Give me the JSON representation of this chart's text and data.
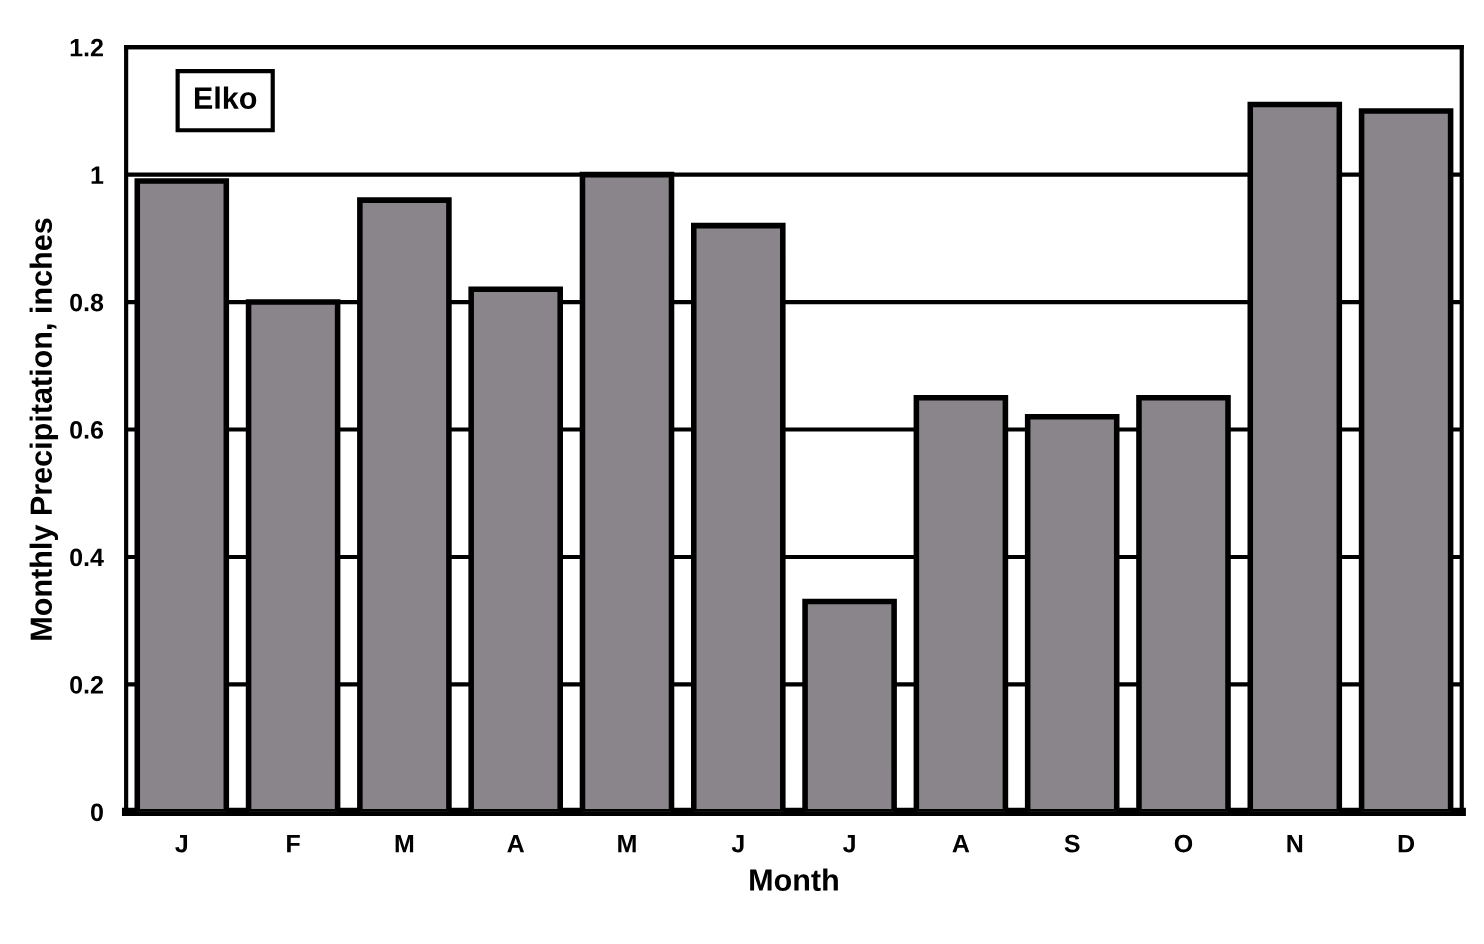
{
  "chart_data": {
    "type": "bar",
    "annotations": [
      "Elko"
    ],
    "xlabel": "Month",
    "ylabel": "Monthly Precipitation, inches",
    "categories": [
      "J",
      "F",
      "M",
      "A",
      "M",
      "J",
      "J",
      "A",
      "S",
      "O",
      "N",
      "D"
    ],
    "values": [
      0.99,
      0.8,
      0.96,
      0.82,
      1.0,
      0.92,
      0.33,
      0.65,
      0.62,
      0.65,
      1.11,
      1.1
    ],
    "color": "#8a858a",
    "ylim": [
      0,
      1.2
    ],
    "yticks": [
      0,
      0.2,
      0.4,
      0.6,
      0.8,
      1,
      1.2
    ],
    "grid": "y"
  }
}
